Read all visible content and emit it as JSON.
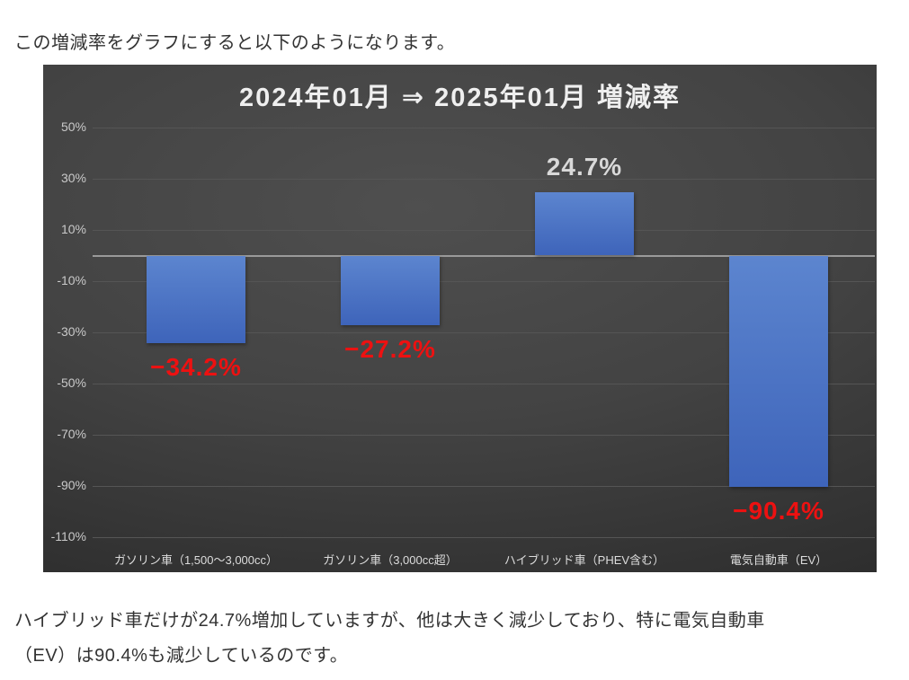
{
  "page": {
    "intro": "この増減率をグラフにすると以下のようになります。",
    "footer_lines": [
      "ハイブリッド車だけが24.7%増加していますが、他は大きく減少しており、特に電気自動車",
      "（EV）は90.4%も減少しているのです。"
    ]
  },
  "chart_data": {
    "type": "bar",
    "title": "2024年01月 ⇒ 2025年01月 増減率",
    "categories": [
      "ガソリン車（1,500～3,000cc）",
      "ガソリン車（3,000cc超）",
      "ハイブリッド車（PHEV含む）",
      "電気自動車（EV）"
    ],
    "values": [
      -34.2,
      -27.2,
      24.7,
      -90.4
    ],
    "value_labels": [
      "−34.2%",
      "−27.2%",
      "24.7%",
      "−90.4%"
    ],
    "xlabel": "",
    "ylabel": "",
    "ylim": [
      -110,
      50
    ],
    "ytick_step": 20,
    "yticks": [
      "50%",
      "30%",
      "10%",
      "-10%",
      "-30%",
      "-50%",
      "-70%",
      "-90%",
      "-110%"
    ],
    "grid": true,
    "legend": false,
    "colors": {
      "bar_top": "#5c85cf",
      "bar_bottom": "#3e64ba",
      "negative_label": "#ed1111",
      "positive_label": "#d9d9d9",
      "gridline": "#555555",
      "axis_line": "#9a9a9a",
      "tick_text": "#c9c9c9",
      "category_text": "#dcdcdc",
      "title_text": "#efefef",
      "chart_bg_center": "#4f4f4f",
      "chart_bg_edge": "#242424",
      "body_text": "#333333",
      "page_bg": "#ffffff"
    }
  }
}
